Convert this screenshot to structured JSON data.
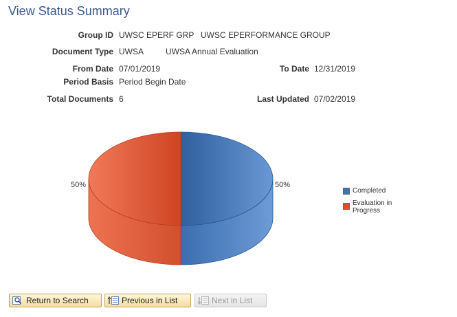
{
  "page": {
    "title": "View Status Summary"
  },
  "summary": {
    "group_id_label": "Group ID",
    "group_id_code": "UWSC EPERF GRP",
    "group_id_desc": "UWSC EPERFORMANCE GROUP",
    "document_type_label": "Document Type",
    "document_type_code": "UWSA",
    "document_type_desc": "UWSA Annual Evaluation",
    "from_date_label": "From Date",
    "from_date": "07/01/2019",
    "to_date_label": "To Date",
    "to_date": "12/31/2019",
    "period_basis_label": "Period Basis",
    "period_basis": "Period Begin Date",
    "total_documents_label": "Total Documents",
    "total_documents": "6",
    "last_updated_label": "Last Updated",
    "last_updated": "07/02/2019"
  },
  "chart_data": {
    "type": "pie",
    "categories": [
      "Completed",
      "Evaluation in Progress"
    ],
    "values": [
      50,
      50
    ],
    "data_labels": [
      "50%",
      "50%"
    ],
    "colors": [
      "#3e73b8",
      "#dd4f2c"
    ],
    "legend": {
      "placement": "right",
      "entries": [
        "Completed",
        "Evaluation in Progress"
      ]
    }
  },
  "buttons": {
    "return_to_search": "Return to Search",
    "previous_in_list": "Previous in List",
    "next_in_list": "Next in List"
  }
}
